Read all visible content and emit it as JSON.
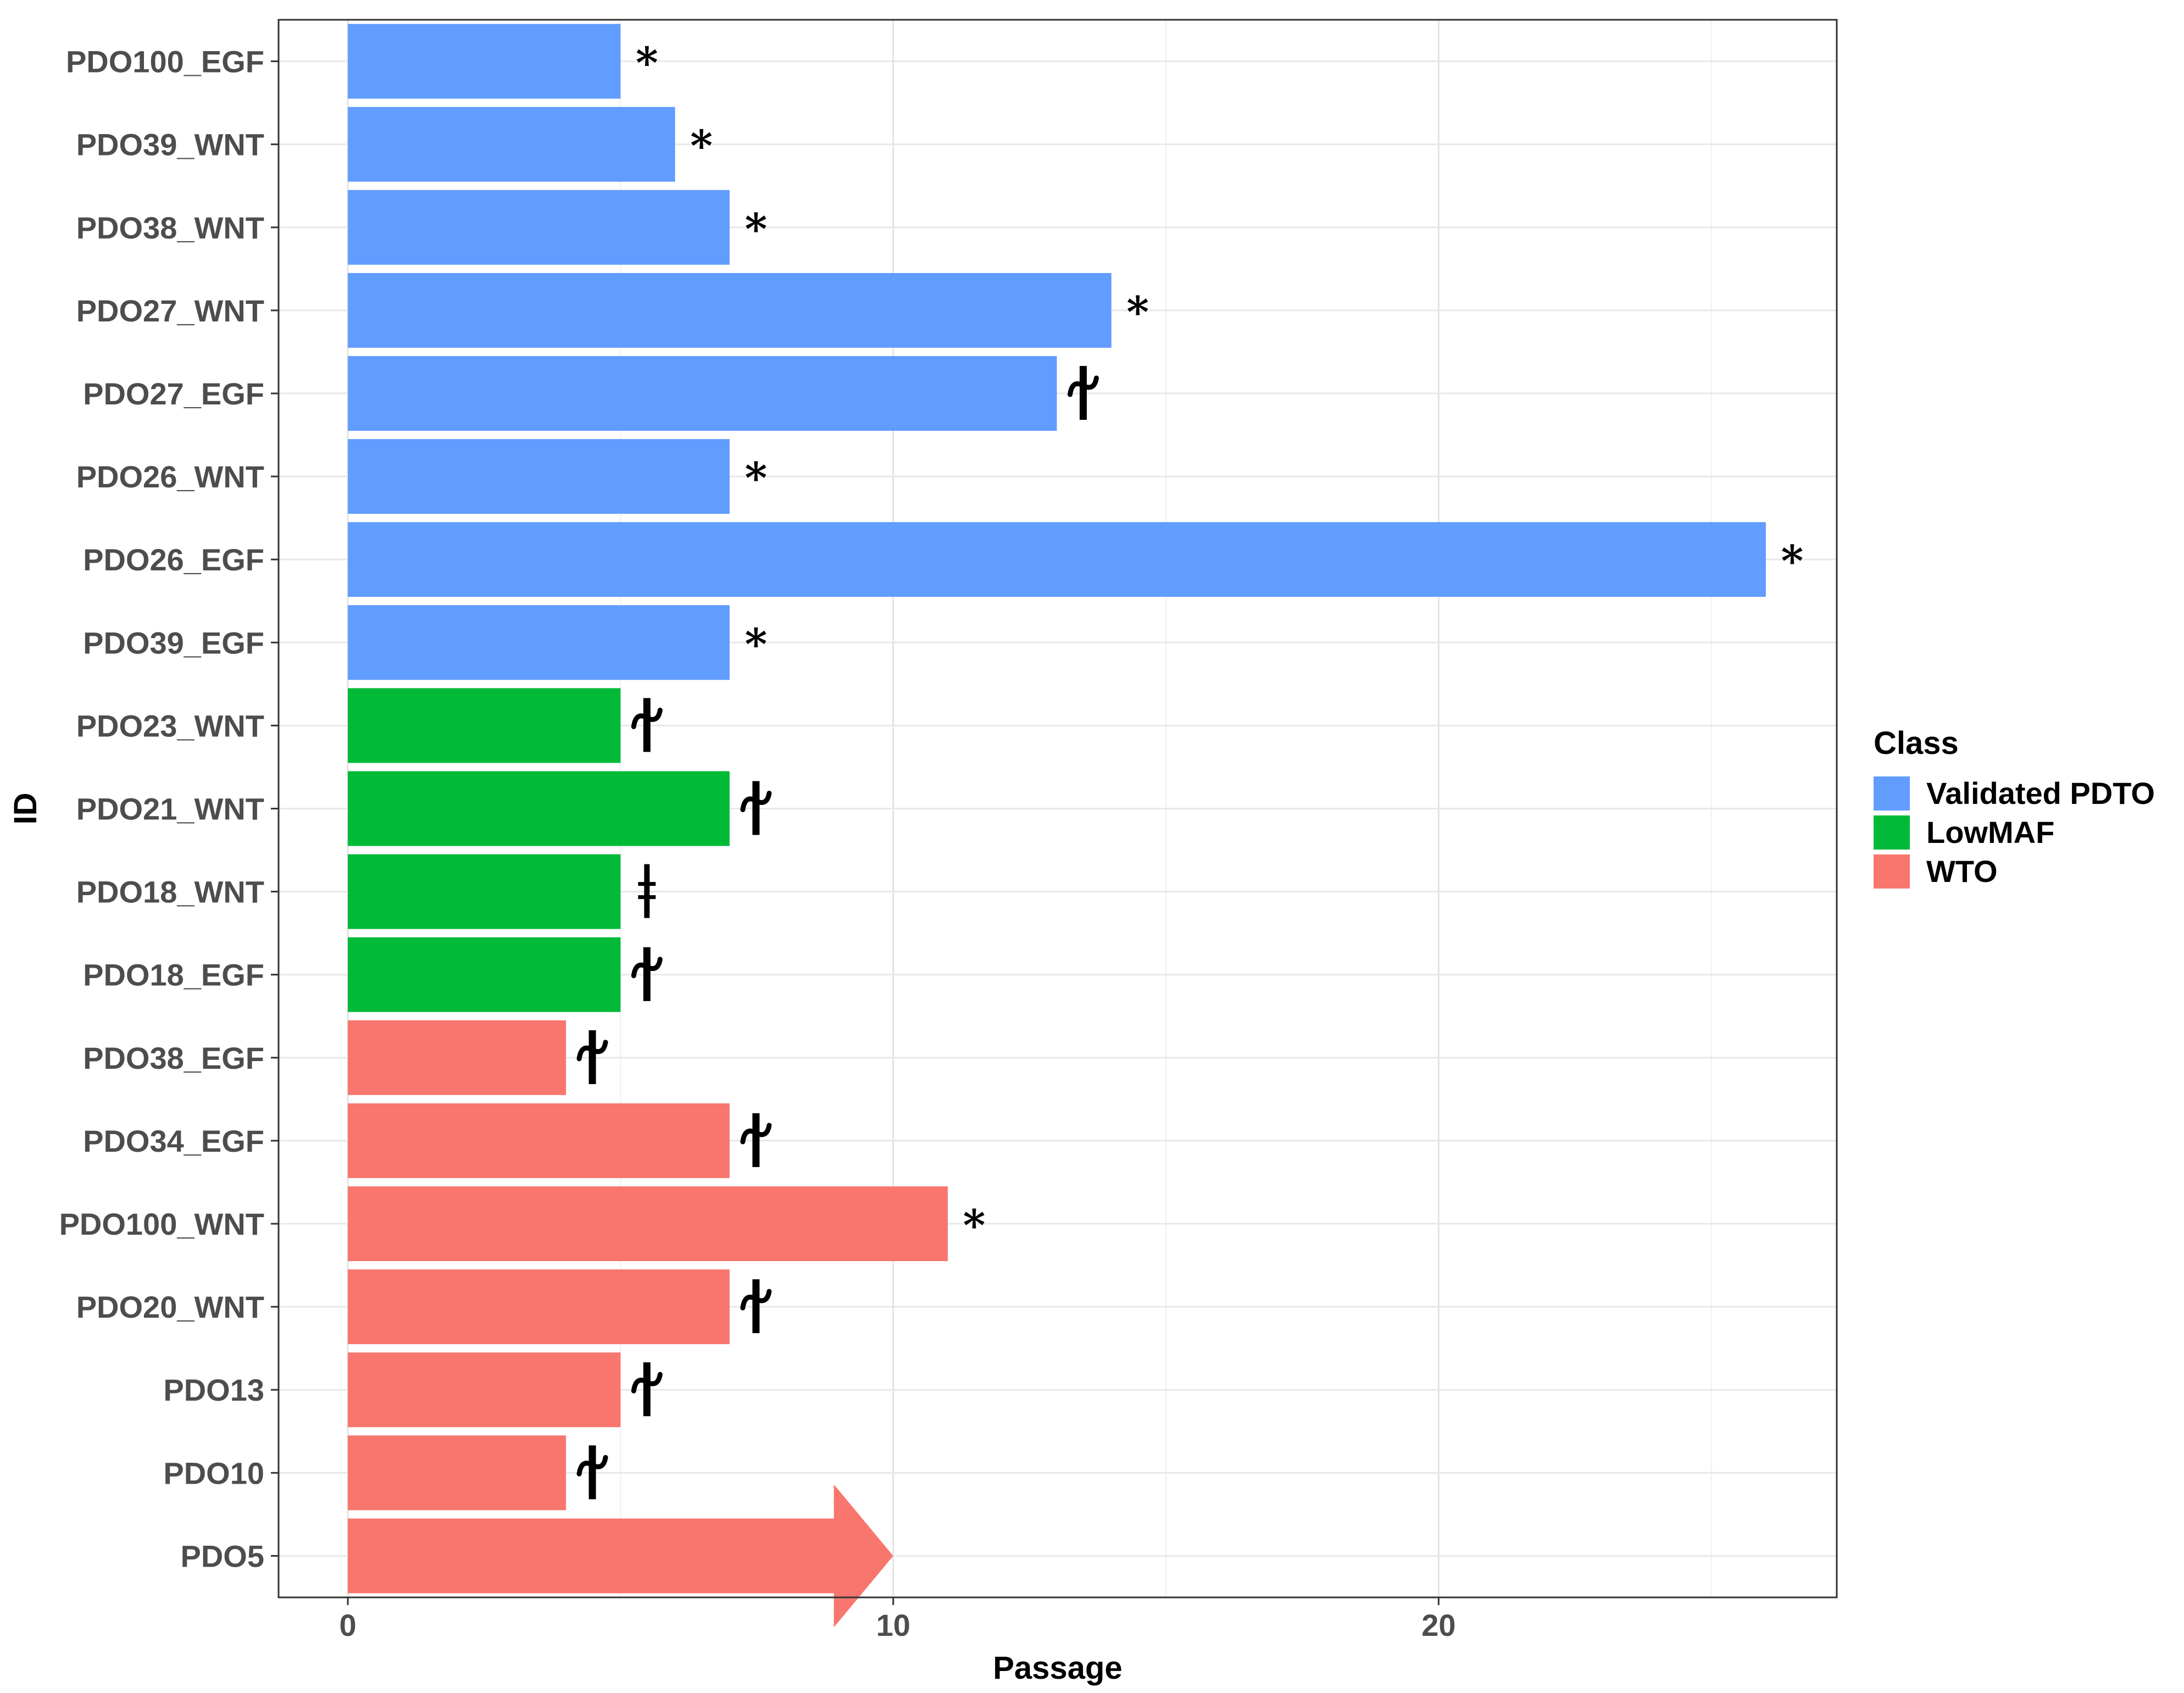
{
  "chart_data": {
    "type": "bar",
    "orientation": "horizontal",
    "title": "",
    "xlabel": "Passage",
    "ylabel": "ID",
    "xlim": [
      -1.27,
      27.3
    ],
    "xticks": [
      0,
      10,
      20
    ],
    "xtick_labels": [
      "0",
      "10",
      "20"
    ],
    "grid": true,
    "legend": {
      "title": "Class",
      "position": "right",
      "entries": [
        {
          "label": "Validated PDTO",
          "color": "#619CFF"
        },
        {
          "label": "LowMAF",
          "color": "#00BA38"
        },
        {
          "label": "WTO",
          "color": "#F8766D"
        }
      ]
    },
    "bars": [
      {
        "id": "PDO100_EGF",
        "value": 5,
        "class": "Validated PDTO",
        "marker": "*"
      },
      {
        "id": "PDO39_WNT",
        "value": 6,
        "class": "Validated PDTO",
        "marker": "*"
      },
      {
        "id": "PDO38_WNT",
        "value": 7,
        "class": "Validated PDTO",
        "marker": "*"
      },
      {
        "id": "PDO27_WNT",
        "value": 14,
        "class": "Validated PDTO",
        "marker": "*"
      },
      {
        "id": "PDO27_EGF",
        "value": 13,
        "class": "Validated PDTO",
        "marker": "dagger"
      },
      {
        "id": "PDO26_WNT",
        "value": 7,
        "class": "Validated PDTO",
        "marker": "*"
      },
      {
        "id": "PDO26_EGF",
        "value": 26,
        "class": "Validated PDTO",
        "marker": "*"
      },
      {
        "id": "PDO39_EGF",
        "value": 7,
        "class": "Validated PDTO",
        "marker": "*"
      },
      {
        "id": "PDO23_WNT",
        "value": 5,
        "class": "LowMAF",
        "marker": "dagger"
      },
      {
        "id": "PDO21_WNT",
        "value": 7,
        "class": "LowMAF",
        "marker": "dagger"
      },
      {
        "id": "PDO18_WNT",
        "value": 5,
        "class": "LowMAF",
        "marker": "double-dagger"
      },
      {
        "id": "PDO18_EGF",
        "value": 5,
        "class": "LowMAF",
        "marker": "dagger"
      },
      {
        "id": "PDO38_EGF",
        "value": 4,
        "class": "WTO",
        "marker": "dagger"
      },
      {
        "id": "PDO34_EGF",
        "value": 7,
        "class": "WTO",
        "marker": "dagger"
      },
      {
        "id": "PDO100_WNT",
        "value": 11,
        "class": "WTO",
        "marker": "*"
      },
      {
        "id": "PDO20_WNT",
        "value": 7,
        "class": "WTO",
        "marker": "dagger"
      },
      {
        "id": "PDO13",
        "value": 5,
        "class": "WTO",
        "marker": "dagger"
      },
      {
        "id": "PDO10",
        "value": 4,
        "class": "WTO",
        "marker": "dagger"
      },
      {
        "id": "PDO5",
        "value": 10,
        "class": "WTO",
        "marker": "arrow"
      }
    ]
  }
}
